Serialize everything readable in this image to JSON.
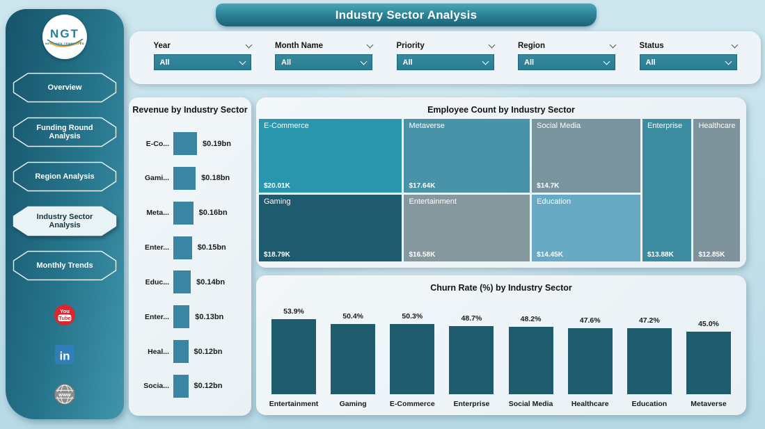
{
  "banner": {
    "title": "Industry Sector Analysis"
  },
  "logo": {
    "text": "NGT",
    "subtext": "NEXT GEN TEMPLATES"
  },
  "sidebar": {
    "items": [
      {
        "label": "Overview",
        "active": false
      },
      {
        "label": "Funding Round Analysis",
        "active": false
      },
      {
        "label": "Region Analysis",
        "active": false
      },
      {
        "label": "Industry Sector Analysis",
        "active": true
      },
      {
        "label": "Monthly Trends",
        "active": false
      }
    ],
    "social": [
      {
        "name": "youtube-icon",
        "line1": "You",
        "line2": "Tube",
        "color": "#d7282f"
      },
      {
        "name": "linkedin-icon",
        "label": "in",
        "color": "#2f7fb6"
      },
      {
        "name": "website-icon",
        "label": "www",
        "color": "#8d8d8d"
      }
    ]
  },
  "filters": [
    {
      "label": "Year",
      "value": "All"
    },
    {
      "label": "Month Name",
      "value": "All"
    },
    {
      "label": "Priority",
      "value": "All"
    },
    {
      "label": "Region",
      "value": "All"
    },
    {
      "label": "Status",
      "value": "All"
    }
  ],
  "colors": {
    "accent_teal": "#2a7c92",
    "dropdown_border": "#1d667b",
    "panel_bg": "#eef4f7",
    "sidebar_dark": "#16536a",
    "sidebar_light": "#4095aa"
  },
  "chart_data": [
    {
      "id": "revenue",
      "type": "bar",
      "orientation": "horizontal",
      "title": "Revenue by Industry Sector",
      "categories": [
        "E-Co...",
        "Gami...",
        "Meta...",
        "Enter...",
        "Educ...",
        "Enter...",
        "Heal...",
        "Socia..."
      ],
      "values": [
        0.19,
        0.18,
        0.16,
        0.15,
        0.14,
        0.13,
        0.12,
        0.12
      ],
      "labels": [
        "$0.19bn",
        "$0.18bn",
        "$0.16bn",
        "$0.15bn",
        "$0.14bn",
        "$0.13bn",
        "$0.12bn",
        "$0.12bn"
      ],
      "unit": "bn USD",
      "bar_color": "#3a86a2",
      "grid": false
    },
    {
      "id": "employee-treemap",
      "type": "treemap",
      "title": "Employee Count by Industry Sector",
      "cells": [
        {
          "label": "E-Commerce",
          "value": 20.01,
          "value_label": "$20.01K",
          "color": "#2996ad",
          "area": "ec"
        },
        {
          "label": "Gaming",
          "value": 18.79,
          "value_label": "$18.79K",
          "color": "#1e5b6e",
          "area": "gm"
        },
        {
          "label": "Metaverse",
          "value": 17.64,
          "value_label": "$17.64K",
          "color": "#4893a8",
          "area": "mv"
        },
        {
          "label": "Entertainment",
          "value": 16.58,
          "value_label": "$16.58K",
          "color": "#85989e",
          "area": "et"
        },
        {
          "label": "Social Media",
          "value": 14.7,
          "value_label": "$14.7K",
          "color": "#7a959f",
          "area": "sm"
        },
        {
          "label": "Education",
          "value": 14.45,
          "value_label": "$14.45K",
          "color": "#68aac3",
          "area": "ed"
        },
        {
          "label": "Enterprise",
          "value": 13.88,
          "value_label": "$13.88K",
          "color": "#3d8ba0",
          "area": "en"
        },
        {
          "label": "Healthcare",
          "value": 12.85,
          "value_label": "$12.85K",
          "color": "#7e939c",
          "area": "hc"
        }
      ]
    },
    {
      "id": "churn",
      "type": "bar",
      "orientation": "vertical",
      "title": "Churn Rate (%) by Industry Sector",
      "categories": [
        "Entertainment",
        "Gaming",
        "E-Commerce",
        "Enterprise",
        "Social Media",
        "Healthcare",
        "Education",
        "Metaverse"
      ],
      "values": [
        53.9,
        50.4,
        50.3,
        48.7,
        48.2,
        47.6,
        47.2,
        45.0
      ],
      "labels": [
        "53.9%",
        "50.4%",
        "50.3%",
        "48.7%",
        "48.2%",
        "47.6%",
        "47.2%",
        "45.0%"
      ],
      "ylim": [
        0,
        55
      ],
      "bar_color": "#1e5b6d",
      "grid": false
    }
  ]
}
